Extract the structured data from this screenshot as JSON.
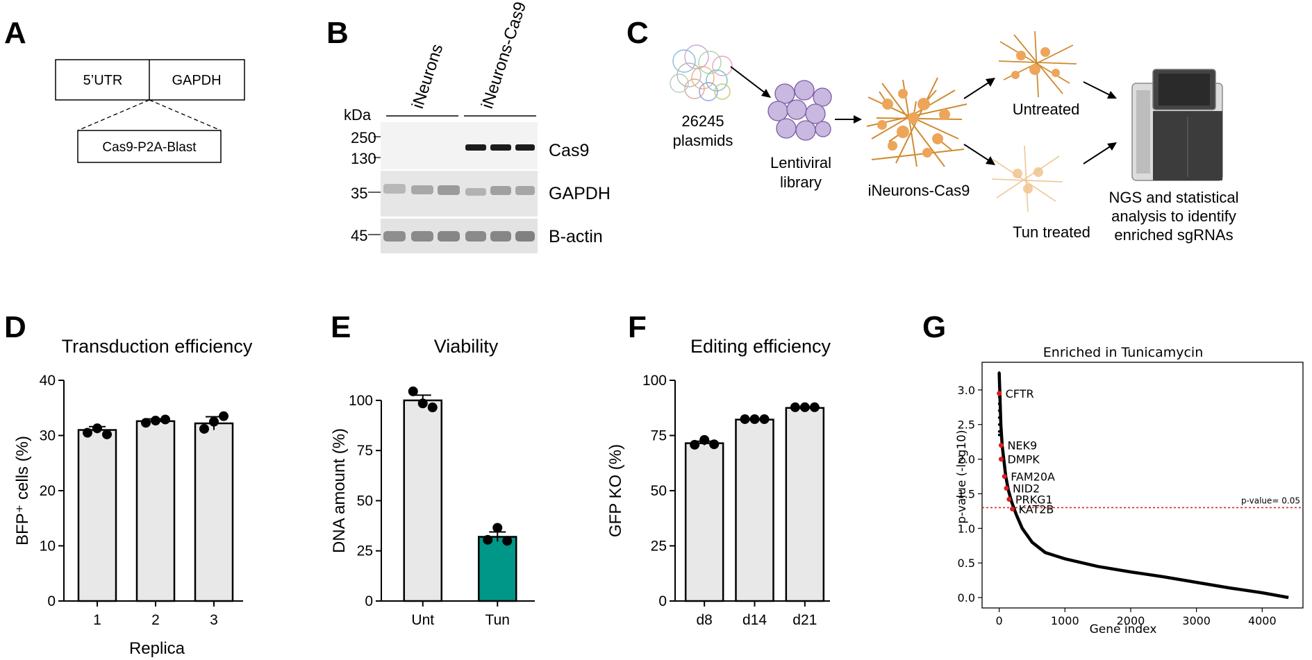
{
  "panels": {
    "A": "A",
    "B": "B",
    "C": "C",
    "D": "D",
    "E": "E",
    "F": "F",
    "G": "G"
  },
  "panel_a": {
    "box_left": "5’UTR",
    "box_right": "GAPDH",
    "insert": "Cas9-P2A-Blast"
  },
  "panel_b": {
    "lane_groups": [
      "iNeurons",
      "iNeurons-Cas9"
    ],
    "kda_label": "kDa",
    "markers": [
      "250",
      "130",
      "35",
      "45"
    ],
    "bands": [
      "Cas9",
      "GAPDH",
      "B-actin"
    ]
  },
  "panel_c": {
    "plasmids": [
      "26245",
      "plasmids"
    ],
    "library": [
      "Lentiviral",
      "library"
    ],
    "cells": "iNeurons-Cas9",
    "untreated": "Untreated",
    "treated": "Tun treated",
    "ngs": [
      "NGS and statistical",
      "analysis to identify",
      "enriched sgRNAs"
    ]
  },
  "colors": {
    "bar_gray": "#e8e8e8",
    "bar_teal": "#009688",
    "neuron": "#e8a34a",
    "cutoff": "#d62728",
    "highlight": "#e41a1c"
  },
  "chart_data": [
    {
      "id": "D",
      "type": "bar",
      "title": "Transduction efficiency",
      "xlabel": "Replica",
      "ylabel": "BFP⁺ cells (%)",
      "categories": [
        "1",
        "2",
        "3"
      ],
      "values": [
        31,
        32.6,
        32.2
      ],
      "errors": [
        0.6,
        0.4,
        1.2
      ],
      "points": [
        [
          30.5,
          31.3,
          30.2
        ],
        [
          32.3,
          32.7,
          32.9
        ],
        [
          31.2,
          32.5,
          33.5
        ]
      ],
      "ylim": [
        0,
        40
      ],
      "yticks": [
        0,
        10,
        20,
        30,
        40
      ]
    },
    {
      "id": "E",
      "type": "bar",
      "title": "Viability",
      "xlabel": "",
      "ylabel": "DNA amount (%)",
      "categories": [
        "Unt",
        "Tun"
      ],
      "values": [
        100,
        32
      ],
      "errors": [
        2.6,
        2.4
      ],
      "points": [
        [
          104.5,
          98.5,
          96.5
        ],
        [
          30.5,
          36.5,
          30
        ]
      ],
      "ylim": [
        0,
        110
      ],
      "yticks": [
        0,
        25,
        50,
        75,
        100
      ]
    },
    {
      "id": "F",
      "type": "bar",
      "title": "Editing efficiency",
      "xlabel": "",
      "ylabel": "GFP KO (%)",
      "categories": [
        "d8",
        "d14",
        "d21"
      ],
      "values": [
        71.5,
        82.2,
        87.5
      ],
      "errors": [
        0.9,
        0.3,
        0.4
      ],
      "points": [
        [
          70.8,
          73,
          71
        ],
        [
          82.4,
          82.4,
          82.4
        ],
        [
          87.8,
          87.8,
          87.8
        ]
      ],
      "ylim": [
        0,
        100
      ],
      "yticks": [
        0,
        25,
        50,
        75,
        100
      ]
    },
    {
      "id": "G",
      "type": "scatter",
      "title": "Enriched in Tunicamycin",
      "xlabel": "Gene index",
      "ylabel": "p-value (-log10)",
      "xlim": [
        -260,
        4620
      ],
      "ylim": [
        -0.15,
        3.4
      ],
      "xticks": [
        0,
        1000,
        2000,
        3000,
        4000
      ],
      "yticks": [
        0.0,
        0.5,
        1.0,
        1.5,
        2.0,
        2.5,
        3.0
      ],
      "threshold": 1.3,
      "threshold_label": "p-value= 0.05",
      "n_genes": 4400,
      "top_points": [
        3.25,
        3.2,
        3.1,
        3.05,
        2.9,
        2.8,
        2.7,
        2.6,
        2.5,
        2.4,
        2.35
      ],
      "highlights": [
        {
          "gene": "CFTR",
          "x": 0,
          "y": 2.95
        },
        {
          "gene": "NEK9",
          "x": 30,
          "y": 2.2
        },
        {
          "gene": "DMPK",
          "x": 30,
          "y": 2.0
        },
        {
          "gene": "FAM20A",
          "x": 80,
          "y": 1.75
        },
        {
          "gene": "NID2",
          "x": 110,
          "y": 1.58
        },
        {
          "gene": "PRKG1",
          "x": 150,
          "y": 1.42
        },
        {
          "gene": "KAT2B",
          "x": 200,
          "y": 1.28
        }
      ],
      "curve": [
        [
          0,
          3.25
        ],
        [
          10,
          2.95
        ],
        [
          25,
          2.5
        ],
        [
          45,
          2.2
        ],
        [
          70,
          2.0
        ],
        [
          100,
          1.75
        ],
        [
          140,
          1.55
        ],
        [
          190,
          1.38
        ],
        [
          260,
          1.2
        ],
        [
          350,
          1.0
        ],
        [
          500,
          0.8
        ],
        [
          700,
          0.65
        ],
        [
          1000,
          0.56
        ],
        [
          1500,
          0.45
        ],
        [
          2000,
          0.37
        ],
        [
          2500,
          0.3
        ],
        [
          3000,
          0.22
        ],
        [
          3500,
          0.14
        ],
        [
          4000,
          0.07
        ],
        [
          4400,
          0.0
        ]
      ]
    }
  ]
}
